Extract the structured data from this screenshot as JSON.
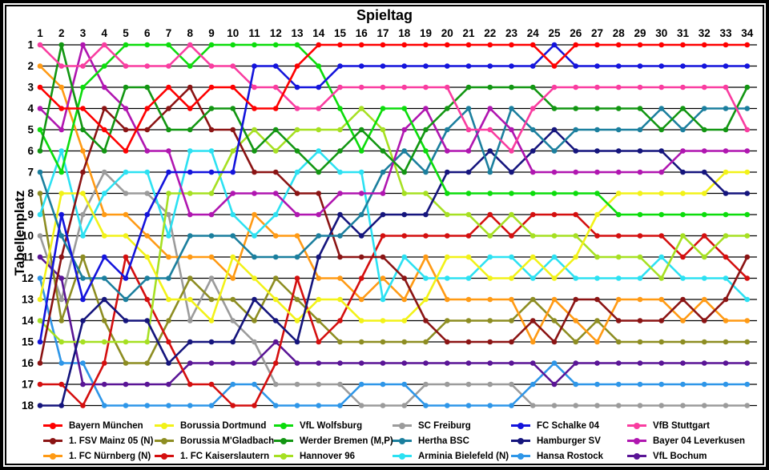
{
  "chart_data": {
    "type": "line",
    "subtype": "bump-chart",
    "x_axis_title": "Spieltag",
    "y_axis_title": "Tabellenplatz",
    "x": [
      1,
      2,
      3,
      4,
      5,
      6,
      7,
      8,
      9,
      10,
      11,
      12,
      13,
      14,
      15,
      16,
      17,
      18,
      19,
      20,
      21,
      22,
      23,
      24,
      25,
      26,
      27,
      28,
      29,
      30,
      31,
      32,
      33,
      34
    ],
    "y_positions": [
      1,
      2,
      3,
      4,
      5,
      6,
      7,
      8,
      9,
      10,
      11,
      12,
      13,
      14,
      15,
      16,
      17,
      18
    ],
    "y_inverted": true,
    "grid": "horizontal-only",
    "legend_position": "bottom",
    "series": [
      {
        "name": "Bayern München",
        "color": "#fe0000",
        "values": [
          3,
          4,
          4,
          5,
          6,
          4,
          3,
          4,
          3,
          3,
          4,
          4,
          2,
          1,
          1,
          1,
          1,
          1,
          1,
          1,
          1,
          1,
          1,
          1,
          2,
          1,
          1,
          1,
          1,
          1,
          1,
          1,
          1,
          1
        ]
      },
      {
        "name": "1. FSV Mainz 05 (N)",
        "color": "#8b1414",
        "values": [
          16,
          11,
          7,
          4,
          5,
          5,
          4,
          3,
          5,
          5,
          7,
          7,
          8,
          8,
          11,
          11,
          11,
          12,
          14,
          15,
          15,
          15,
          15,
          14,
          15,
          13,
          13,
          14,
          14,
          14,
          13,
          14,
          13,
          11
        ]
      },
      {
        "name": "1. FC Nürnberg (N)",
        "color": "#ff9a14",
        "values": [
          2,
          3,
          6,
          9,
          9,
          10,
          11,
          11,
          11,
          12,
          9,
          10,
          10,
          12,
          12,
          13,
          12,
          13,
          11,
          13,
          13,
          13,
          13,
          15,
          13,
          14,
          15,
          13,
          13,
          13,
          14,
          13,
          14,
          14
        ]
      },
      {
        "name": "Borussia Dortmund",
        "color": "#f2f218",
        "values": [
          13,
          8,
          8,
          10,
          10,
          11,
          13,
          13,
          14,
          11,
          12,
          13,
          14,
          13,
          13,
          14,
          14,
          14,
          13,
          11,
          11,
          12,
          12,
          11,
          12,
          11,
          9,
          8,
          8,
          8,
          8,
          8,
          7,
          7
        ]
      },
      {
        "name": "Borussia M'Gladbach",
        "color": "#8d8d22",
        "values": [
          8,
          14,
          11,
          14,
          16,
          16,
          14,
          12,
          13,
          13,
          14,
          12,
          13,
          14,
          15,
          15,
          15,
          15,
          15,
          14,
          14,
          14,
          14,
          13,
          14,
          15,
          14,
          15,
          15,
          15,
          15,
          15,
          15,
          15
        ]
      },
      {
        "name": "1. FC Kaiserslautern",
        "color": "#d40f0f",
        "values": [
          17,
          17,
          18,
          16,
          11,
          13,
          15,
          17,
          17,
          18,
          18,
          16,
          12,
          15,
          14,
          12,
          10,
          10,
          10,
          10,
          10,
          9,
          10,
          9,
          9,
          9,
          10,
          10,
          10,
          10,
          11,
          10,
          11,
          12
        ]
      },
      {
        "name": "VfL Wolfsburg",
        "color": "#0cdc0c",
        "values": [
          5,
          7,
          3,
          2,
          1,
          1,
          1,
          2,
          1,
          1,
          1,
          1,
          1,
          2,
          4,
          6,
          4,
          4,
          6,
          8,
          8,
          8,
          8,
          8,
          8,
          8,
          8,
          9,
          9,
          9,
          9,
          9,
          9,
          9
        ]
      },
      {
        "name": "Werder Bremen (M,P)",
        "color": "#129612",
        "values": [
          6,
          1,
          5,
          6,
          3,
          3,
          5,
          5,
          4,
          4,
          6,
          5,
          6,
          7,
          6,
          5,
          6,
          7,
          5,
          4,
          3,
          3,
          3,
          3,
          4,
          4,
          4,
          4,
          4,
          5,
          4,
          5,
          5,
          3
        ]
      },
      {
        "name": "Hannover 96",
        "color": "#a6e022",
        "values": [
          14,
          15,
          15,
          15,
          15,
          15,
          8,
          8,
          8,
          6,
          5,
          6,
          5,
          5,
          5,
          4,
          5,
          8,
          8,
          9,
          9,
          10,
          9,
          10,
          10,
          10,
          11,
          11,
          11,
          12,
          10,
          11,
          10,
          10
        ]
      },
      {
        "name": "SC Freiburg",
        "color": "#9b9b9b",
        "values": [
          10,
          13,
          9,
          7,
          8,
          8,
          9,
          14,
          12,
          14,
          15,
          17,
          17,
          17,
          17,
          18,
          18,
          18,
          17,
          17,
          17,
          17,
          17,
          18,
          18,
          18,
          18,
          18,
          18,
          18,
          18,
          18,
          18,
          18
        ]
      },
      {
        "name": "Hertha BSC",
        "color": "#1b7f9e",
        "values": [
          7,
          10,
          12,
          12,
          13,
          12,
          12,
          10,
          10,
          10,
          11,
          11,
          11,
          10,
          10,
          9,
          7,
          6,
          7,
          5,
          4,
          7,
          4,
          5,
          6,
          5,
          5,
          5,
          5,
          4,
          5,
          4,
          4,
          4
        ]
      },
      {
        "name": "Arminia Bielefeld (N)",
        "color": "#2ce1f2",
        "values": [
          9,
          6,
          10,
          8,
          7,
          7,
          10,
          6,
          6,
          9,
          10,
          9,
          7,
          6,
          7,
          7,
          13,
          11,
          12,
          12,
          12,
          11,
          11,
          12,
          11,
          12,
          12,
          12,
          12,
          11,
          12,
          12,
          12,
          13
        ]
      },
      {
        "name": "FC Schalke 04",
        "color": "#1414dc",
        "values": [
          15,
          9,
          13,
          11,
          12,
          9,
          7,
          7,
          7,
          7,
          2,
          2,
          3,
          3,
          2,
          2,
          2,
          2,
          2,
          2,
          2,
          2,
          2,
          2,
          1,
          2,
          2,
          2,
          2,
          2,
          2,
          2,
          2,
          2
        ]
      },
      {
        "name": "Hamburger SV",
        "color": "#15157d",
        "values": [
          18,
          18,
          14,
          13,
          14,
          14,
          16,
          15,
          15,
          15,
          13,
          14,
          15,
          11,
          9,
          10,
          9,
          9,
          9,
          7,
          7,
          6,
          7,
          6,
          5,
          6,
          6,
          6,
          6,
          6,
          7,
          7,
          8,
          8
        ]
      },
      {
        "name": "Hansa Rostock",
        "color": "#2e96e8",
        "values": [
          12,
          16,
          16,
          18,
          18,
          18,
          18,
          18,
          18,
          17,
          17,
          18,
          18,
          18,
          18,
          17,
          17,
          17,
          18,
          18,
          18,
          18,
          18,
          17,
          16,
          17,
          17,
          17,
          17,
          17,
          17,
          17,
          17,
          17
        ]
      },
      {
        "name": "VfB Stuttgart",
        "color": "#f93da0",
        "values": [
          1,
          2,
          2,
          1,
          2,
          2,
          2,
          1,
          2,
          2,
          3,
          3,
          4,
          4,
          3,
          3,
          3,
          3,
          3,
          3,
          5,
          5,
          6,
          4,
          3,
          3,
          3,
          3,
          3,
          3,
          3,
          3,
          3,
          5
        ]
      },
      {
        "name": "Bayer 04 Leverkusen",
        "color": "#b016b0",
        "values": [
          4,
          5,
          1,
          3,
          4,
          6,
          6,
          9,
          9,
          8,
          8,
          8,
          9,
          9,
          8,
          8,
          8,
          5,
          4,
          6,
          6,
          4,
          5,
          7,
          7,
          7,
          7,
          7,
          7,
          7,
          6,
          6,
          6,
          6
        ]
      },
      {
        "name": "VfL Bochum",
        "color": "#5a1596",
        "values": [
          11,
          12,
          17,
          17,
          17,
          17,
          17,
          16,
          16,
          16,
          16,
          15,
          16,
          16,
          16,
          16,
          16,
          16,
          16,
          16,
          16,
          16,
          16,
          16,
          17,
          16,
          16,
          16,
          16,
          16,
          16,
          16,
          16,
          16
        ]
      }
    ]
  }
}
